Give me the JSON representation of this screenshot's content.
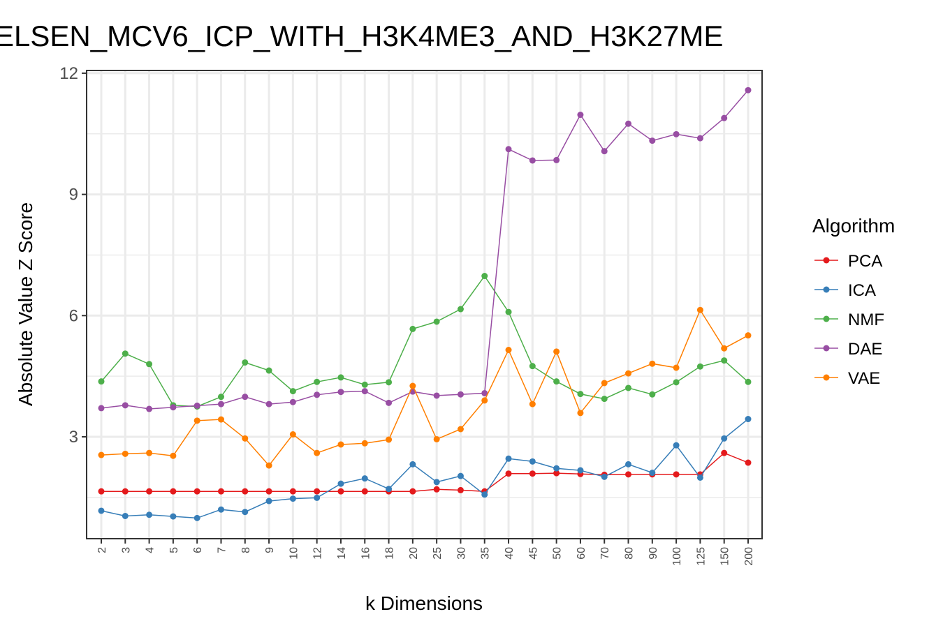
{
  "chart_data": {
    "type": "line",
    "title": "ELSEN_MCV6_ICP_WITH_H3K4ME3_AND_H3K27ME",
    "xlabel": "k Dimensions",
    "ylabel": "Absolute Value Z Score",
    "ylim": [
      0.0,
      12.0
    ],
    "yticks": [
      3,
      6,
      9,
      12
    ],
    "ytick_labels": [
      "3",
      "6",
      "9",
      "12"
    ],
    "grid": true,
    "legend_title": "Algorithm",
    "legend_position": "right",
    "categories": [
      "2",
      "3",
      "4",
      "5",
      "6",
      "7",
      "8",
      "9",
      "10",
      "12",
      "14",
      "16",
      "18",
      "20",
      "25",
      "30",
      "35",
      "40",
      "45",
      "50",
      "60",
      "70",
      "80",
      "90",
      "100",
      "125",
      "150",
      "200"
    ],
    "series": [
      {
        "name": "PCA",
        "color": "#e41a1c",
        "values": [
          1.65,
          1.65,
          1.65,
          1.65,
          1.65,
          1.65,
          1.65,
          1.65,
          1.65,
          1.65,
          1.65,
          1.65,
          1.65,
          1.65,
          1.7,
          1.68,
          1.65,
          2.09,
          2.09,
          2.1,
          2.08,
          2.06,
          2.07,
          2.07,
          2.07,
          2.07,
          2.6,
          2.36
        ]
      },
      {
        "name": "ICA",
        "color": "#377eb8",
        "values": [
          1.17,
          1.04,
          1.07,
          1.03,
          0.99,
          1.2,
          1.14,
          1.41,
          1.47,
          1.49,
          1.84,
          1.97,
          1.71,
          2.32,
          1.88,
          2.03,
          1.57,
          2.46,
          2.39,
          2.22,
          2.17,
          2.01,
          2.32,
          2.11,
          2.79,
          1.99,
          2.96,
          3.44
        ]
      },
      {
        "name": "NMF",
        "color": "#4daf4a",
        "values": [
          4.37,
          5.06,
          4.8,
          3.78,
          3.75,
          3.99,
          4.84,
          4.64,
          4.13,
          4.36,
          4.47,
          4.29,
          4.35,
          5.67,
          5.85,
          6.16,
          6.98,
          6.09,
          4.75,
          4.37,
          4.06,
          3.94,
          4.21,
          4.05,
          4.35,
          4.74,
          4.89,
          4.36
        ]
      },
      {
        "name": "DAE",
        "color": "#984ea3",
        "values": [
          3.71,
          3.78,
          3.69,
          3.73,
          3.77,
          3.81,
          3.99,
          3.81,
          3.86,
          4.04,
          4.11,
          4.13,
          3.84,
          4.12,
          4.02,
          4.05,
          4.08,
          10.12,
          9.84,
          9.85,
          10.97,
          10.07,
          10.75,
          10.33,
          10.49,
          10.39,
          10.89,
          11.58
        ]
      },
      {
        "name": "VAE",
        "color": "#ff7f00",
        "values": [
          2.55,
          2.58,
          2.6,
          2.53,
          3.4,
          3.43,
          2.96,
          2.29,
          3.06,
          2.6,
          2.81,
          2.84,
          2.93,
          4.26,
          2.94,
          3.19,
          3.9,
          5.15,
          3.81,
          5.11,
          3.59,
          4.33,
          4.57,
          4.81,
          4.71,
          6.14,
          5.19,
          5.51
        ]
      }
    ]
  }
}
